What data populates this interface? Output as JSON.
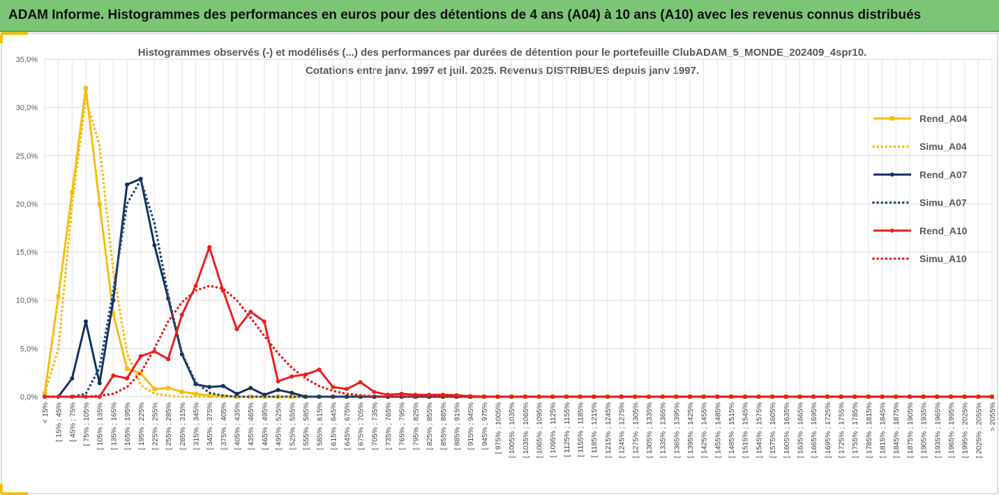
{
  "header": {
    "title": "ADAM Informe. Histogrammes des performances en euros pour des détentions de 4 ans (A04) à 10 ans (A10) avec les revenus connus distribués"
  },
  "chart_data": {
    "type": "line",
    "title": "Histogrammes observés (-) et modélisés (...) des performances par durées de détention pour le portefeuille ClubADAM_5_MONDE_202409_4spr10.",
    "subtitle": "Cotations entre janv. 1997 et juil. 2025. Revenus DISTRIBUES depuis janv 1997.",
    "categories": [
      "< 15%",
      "[ 15% ; 45%",
      "[ 45% ; 75%",
      "[ 75% ; 105%",
      "[ 105% ; 135%",
      "[ 135% ; 165%",
      "[ 165% ; 195%",
      "[ 195% ; 225%",
      "[ 225% ; 255%",
      "[ 255% ; 285%",
      "[ 285% ; 315%",
      "[ 315% ; 345%",
      "[ 345% ; 375%",
      "[ 375% ; 405%",
      "[ 405% ; 435%",
      "[ 435% ; 465%",
      "[ 465% ; 495%",
      "[ 495% ; 525%",
      "[ 525% ; 555%",
      "[ 555% ; 585%",
      "[ 585% ; 615%",
      "[ 615% ; 645%",
      "[ 645% ; 675%",
      "[ 675% ; 705%",
      "[ 705% ; 735%",
      "[ 735% ; 765%",
      "[ 765% ; 795%",
      "[ 795% ; 825%",
      "[ 825% ; 855%",
      "[ 855% ; 885%",
      "[ 885% ; 915%",
      "[ 915% ; 945%",
      "[ 945% ; 975%",
      "[ 975% ; 1005%",
      "[ 1005% ; 1035%",
      "[ 1035% ; 1065%",
      "[ 1065% ; 1095%",
      "[ 1095% ; 1125%",
      "[ 1125% ; 1155%",
      "[ 1155% ; 1185%",
      "[ 1185% ; 1215%",
      "[ 1215% ; 1245%",
      "[ 1245% ; 1275%",
      "[ 1275% ; 1305%",
      "[ 1305% ; 1335%",
      "[ 1335% ; 1365%",
      "[ 1365% ; 1395%",
      "[ 1395% ; 1425%",
      "[ 1425% ; 1455%",
      "[ 1455% ; 1485%",
      "[ 1485% ; 1515%",
      "[ 1515% ; 1545%",
      "[ 1545% ; 1575%",
      "[ 1575% ; 1605%",
      "[ 1605% ; 1635%",
      "[ 1635% ; 1665%",
      "[ 1665% ; 1695%",
      "[ 1695% ; 1725%",
      "[ 1725% ; 1755%",
      "[ 1755% ; 1785%",
      "[ 1785% ; 1815%",
      "[ 1815% ; 1845%",
      "[ 1845% ; 1875%",
      "[ 1875% ; 1905%",
      "[ 1905% ; 1935%",
      "[ 1935% ; 1965%",
      "[ 1965% ; 1995%",
      "[ 1995% ; 2025%",
      "[ 2025% ; 2055%",
      "> 2055%"
    ],
    "series": [
      {
        "name": "Rend_A04",
        "color": "#f5bd0f",
        "style": "solid",
        "marker": "square",
        "values": [
          0.3,
          10.4,
          21.2,
          32,
          20,
          8.6,
          2.9,
          2.4,
          0.8,
          0.9,
          0.5,
          0.3,
          0.1,
          0.05,
          0,
          0,
          0,
          0,
          0,
          0,
          0,
          0,
          0,
          0,
          0,
          0,
          0,
          0,
          0,
          0,
          0,
          0,
          0,
          0,
          0,
          0,
          0,
          0,
          0,
          0,
          0,
          0,
          0,
          0,
          0,
          0,
          0,
          0,
          0,
          0,
          0,
          0,
          0,
          0,
          0,
          0,
          0,
          0,
          0,
          0,
          0,
          0,
          0,
          0,
          0,
          0,
          0,
          0,
          0,
          0
        ]
      },
      {
        "name": "Simu_A04",
        "color": "#f5bd0f",
        "style": "dotted",
        "values": [
          0.3,
          5,
          20,
          31,
          26,
          13,
          4.5,
          1.2,
          0.3,
          0.1,
          0,
          0,
          0,
          0,
          0,
          0,
          0,
          0,
          0,
          0,
          0,
          0,
          0,
          0,
          0,
          0,
          0,
          0,
          0,
          0,
          0,
          0,
          0,
          0,
          0,
          0,
          0,
          0,
          0,
          0,
          0,
          0,
          0,
          0,
          0,
          0,
          0,
          0,
          0,
          0,
          0,
          0,
          0,
          0,
          0,
          0,
          0,
          0,
          0,
          0,
          0,
          0,
          0,
          0,
          0,
          0,
          0,
          0,
          0,
          0
        ]
      },
      {
        "name": "Rend_A07",
        "color": "#14305e",
        "style": "solid",
        "marker": "circle",
        "values": [
          0,
          0,
          1.9,
          7.8,
          1.4,
          10,
          22,
          22.6,
          15.7,
          10.2,
          4.4,
          1.3,
          1,
          1.1,
          0.3,
          0.9,
          0.2,
          0.7,
          0.4,
          0,
          0,
          0,
          0,
          0,
          0,
          0,
          0,
          0,
          0,
          0,
          0,
          0,
          0,
          0,
          0,
          0,
          0,
          0,
          0,
          0,
          0,
          0,
          0,
          0,
          0,
          0,
          0,
          0,
          0,
          0,
          0,
          0,
          0,
          0,
          0,
          0,
          0,
          0,
          0,
          0,
          0,
          0,
          0,
          0,
          0,
          0,
          0,
          0,
          0,
          0
        ]
      },
      {
        "name": "Simu_A07",
        "color": "#24497a",
        "style": "dotted",
        "values": [
          0,
          0,
          0,
          0.3,
          3,
          11,
          20,
          22.5,
          18,
          10.5,
          4.5,
          1.5,
          0.4,
          0.1,
          0,
          0,
          0,
          0,
          0,
          0,
          0,
          0,
          0,
          0,
          0,
          0,
          0,
          0,
          0,
          0,
          0,
          0,
          0,
          0,
          0,
          0,
          0,
          0,
          0,
          0,
          0,
          0,
          0,
          0,
          0,
          0,
          0,
          0,
          0,
          0,
          0,
          0,
          0,
          0,
          0,
          0,
          0,
          0,
          0,
          0,
          0,
          0,
          0,
          0,
          0,
          0,
          0,
          0,
          0,
          0
        ]
      },
      {
        "name": "Rend_A10",
        "color": "#ee1c1c",
        "style": "solid",
        "marker": "circle",
        "values": [
          0,
          0,
          0,
          0,
          0,
          2.2,
          1.9,
          4.2,
          4.7,
          3.9,
          8.5,
          11.5,
          15.5,
          11,
          7,
          8.8,
          7.8,
          1.6,
          2.1,
          2.3,
          2.8,
          1,
          0.8,
          1.5,
          0.5,
          0.2,
          0.3,
          0.2,
          0.2,
          0.2,
          0.15,
          0.05,
          0,
          0,
          0,
          0,
          0,
          0,
          0,
          0,
          0,
          0,
          0,
          0,
          0,
          0,
          0,
          0,
          0,
          0,
          0,
          0,
          0,
          0,
          0,
          0,
          0,
          0,
          0,
          0,
          0,
          0,
          0,
          0,
          0,
          0,
          0,
          0,
          0,
          0
        ]
      },
      {
        "name": "Simu_A10",
        "color": "#ee1c1c",
        "style": "dotted",
        "values": [
          0,
          0,
          0,
          0,
          0.1,
          0.3,
          1,
          2.5,
          5,
          7.8,
          9.8,
          11,
          11.5,
          11.2,
          10,
          8.2,
          6.3,
          4.5,
          3,
          1.9,
          1.1,
          0.6,
          0.3,
          0.15,
          0.05,
          0,
          0,
          0,
          0,
          0,
          0,
          0,
          0,
          0,
          0,
          0,
          0,
          0,
          0,
          0,
          0,
          0,
          0,
          0,
          0,
          0,
          0,
          0,
          0,
          0,
          0,
          0,
          0,
          0,
          0,
          0,
          0,
          0,
          0,
          0,
          0,
          0,
          0,
          0,
          0,
          0,
          0,
          0,
          0,
          0
        ]
      }
    ],
    "ylim": [
      0,
      35
    ],
    "yticks": [
      {
        "value": 0,
        "label": "0,0%"
      },
      {
        "value": 5,
        "label": "5,0%"
      },
      {
        "value": 10,
        "label": "10,0%"
      },
      {
        "value": 15,
        "label": "15,0%"
      },
      {
        "value": 20,
        "label": "20,0%"
      },
      {
        "value": 25,
        "label": "25,0%"
      },
      {
        "value": 30,
        "label": "30,0%"
      },
      {
        "value": 35,
        "label": "35,0%"
      }
    ],
    "grid": true,
    "legend": "right"
  }
}
